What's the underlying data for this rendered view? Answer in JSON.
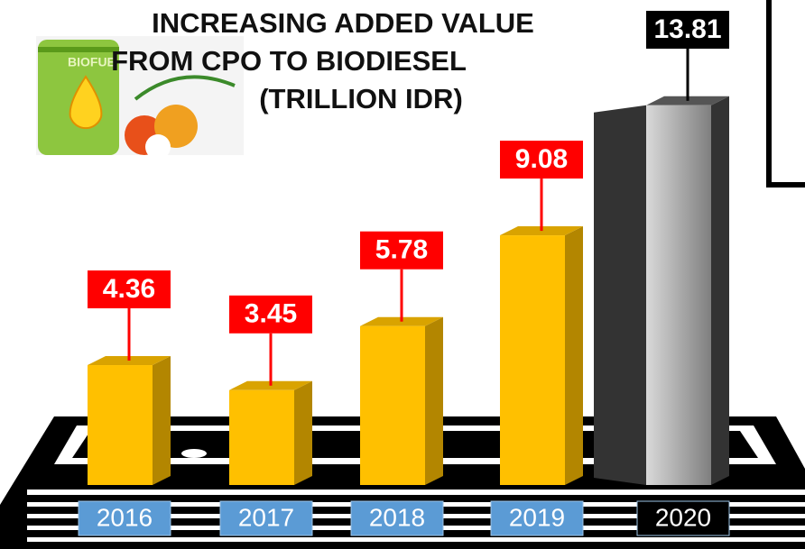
{
  "chart_data": {
    "type": "bar3d",
    "title": [
      "INCREASING ADDED VALUE",
      "FROM CPO TO BIODIESEL"
    ],
    "subtitle": "(TRILLION IDR)",
    "icon_text": "BIOFUE",
    "categories": [
      "2016",
      "2017",
      "2018",
      "2019",
      "2020"
    ],
    "values": [
      4.36,
      3.45,
      5.78,
      9.08,
      13.81
    ],
    "colors": [
      "#ffc000",
      "#ffc000",
      "#ffc000",
      "#ffc000",
      "#a6a6a6"
    ],
    "label_colors": [
      "#ff0000",
      "#ff0000",
      "#ff0000",
      "#ff0000",
      "#000000"
    ],
    "category_colors": [
      "#5b9bd5",
      "#5b9bd5",
      "#5b9bd5",
      "#5b9bd5",
      "#000000"
    ]
  }
}
